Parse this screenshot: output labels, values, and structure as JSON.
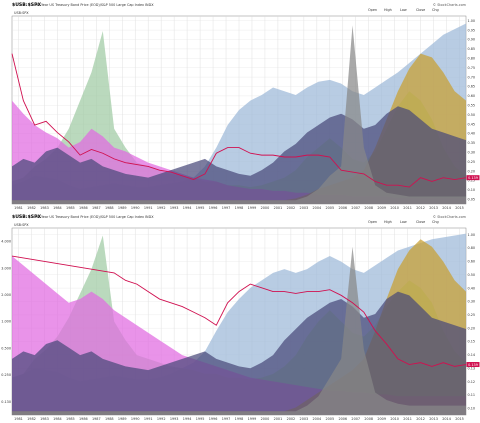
{
  "chart_data": [
    {
      "type": "area",
      "title": "$USB:$SPX",
      "subtitle": "30-Year US Treasury Bond Price (EOD)/S&P 500 Large Cap Index INDX",
      "ohlc_labels": [
        "Open",
        "High",
        "Low",
        "Close",
        "Chg"
      ],
      "brand": "© StockCharts.com",
      "x_ticks": [
        "1981",
        "1982",
        "1983",
        "1984",
        "1985",
        "1986",
        "1987",
        "1988",
        "1989",
        "1990",
        "1991",
        "1992",
        "1993",
        "1994",
        "1995",
        "1996",
        "1997",
        "1998",
        "1999",
        "2000",
        "2001",
        "2002",
        "2003",
        "2004",
        "2005",
        "2006",
        "2007",
        "2008",
        "2009",
        "2010",
        "2011",
        "2012",
        "2013",
        "2014",
        "2015"
      ],
      "y_ticks_right": [
        "1.00",
        "0.95",
        "0.90",
        "0.85",
        "0.80",
        "0.75",
        "0.70",
        "0.65",
        "0.60",
        "0.55",
        "0.50",
        "0.45",
        "0.40",
        "0.35",
        "0.30",
        "0.25",
        "0.20",
        "0.15",
        "0.10",
        "0.05"
      ],
      "last_value_label": "0.139",
      "series": [
        {
          "name": "USB:SPX",
          "color": "#d01050",
          "values": [
            0.8,
            0.55,
            0.42,
            0.44,
            0.38,
            0.33,
            0.26,
            0.29,
            0.27,
            0.24,
            0.22,
            0.21,
            0.2,
            0.18,
            0.17,
            0.15,
            0.13,
            0.16,
            0.27,
            0.3,
            0.3,
            0.27,
            0.26,
            0.26,
            0.25,
            0.25,
            0.26,
            0.26,
            0.25,
            0.18,
            0.17,
            0.16,
            0.12,
            0.1,
            0.1,
            0.09,
            0.14,
            0.12,
            0.14,
            0.13,
            0.14
          ]
        },
        {
          "color": "#9db8d8",
          "values": [
            0.1,
            0.12,
            0.15,
            0.14,
            0.13,
            0.1,
            0.08,
            0.09,
            0.1,
            0.11,
            0.1,
            0.09,
            0.09,
            0.1,
            0.11,
            0.12,
            0.14,
            0.2,
            0.3,
            0.42,
            0.5,
            0.55,
            0.58,
            0.62,
            0.6,
            0.58,
            0.62,
            0.65,
            0.66,
            0.64,
            0.6,
            0.58,
            0.62,
            0.66,
            0.7,
            0.75,
            0.8,
            0.85,
            0.9,
            0.93,
            0.96
          ]
        },
        {
          "color": "#9fcaa3",
          "values": [
            0.12,
            0.14,
            0.2,
            0.24,
            0.3,
            0.4,
            0.55,
            0.7,
            0.92,
            0.4,
            0.3,
            0.22,
            0.2,
            0.18,
            0.16,
            0.15,
            0.14,
            0.12,
            0.12,
            0.1,
            0.1,
            0.09,
            0.1,
            0.12,
            0.14,
            0.18,
            0.25,
            0.3,
            0.35,
            0.3,
            0.24,
            0.22,
            0.28,
            0.4,
            0.52,
            0.6,
            0.55,
            0.45,
            0.3,
            0.2,
            0.15
          ]
        },
        {
          "color": "#e06ae0",
          "values": [
            0.55,
            0.48,
            0.42,
            0.38,
            0.35,
            0.3,
            0.33,
            0.4,
            0.36,
            0.3,
            0.28,
            0.25,
            0.22,
            0.2,
            0.18,
            0.16,
            0.14,
            0.13,
            0.12,
            0.1,
            0.09,
            0.08,
            0.08,
            0.07,
            0.07,
            0.06,
            0.06,
            0.05,
            0.05,
            0.05,
            0.04,
            0.04,
            0.04,
            0.04,
            0.03,
            0.03,
            0.03,
            0.03,
            0.03,
            0.03,
            0.03
          ]
        },
        {
          "color": "#c9a030",
          "values": [
            0.02,
            0.02,
            0.02,
            0.02,
            0.02,
            0.02,
            0.02,
            0.02,
            0.02,
            0.02,
            0.02,
            0.02,
            0.02,
            0.02,
            0.02,
            0.02,
            0.02,
            0.02,
            0.02,
            0.02,
            0.02,
            0.02,
            0.02,
            0.02,
            0.02,
            0.03,
            0.05,
            0.08,
            0.1,
            0.12,
            0.14,
            0.18,
            0.3,
            0.45,
            0.6,
            0.72,
            0.8,
            0.78,
            0.7,
            0.6,
            0.55
          ]
        },
        {
          "color": "#4a4a7a",
          "values": [
            0.2,
            0.24,
            0.22,
            0.28,
            0.3,
            0.26,
            0.22,
            0.24,
            0.2,
            0.18,
            0.16,
            0.15,
            0.14,
            0.16,
            0.18,
            0.2,
            0.22,
            0.24,
            0.2,
            0.18,
            0.16,
            0.15,
            0.18,
            0.22,
            0.28,
            0.32,
            0.38,
            0.42,
            0.46,
            0.48,
            0.45,
            0.4,
            0.42,
            0.48,
            0.52,
            0.5,
            0.45,
            0.4,
            0.38,
            0.36,
            0.34
          ]
        },
        {
          "color": "#888888",
          "values": [
            0.02,
            0.02,
            0.02,
            0.02,
            0.02,
            0.02,
            0.02,
            0.02,
            0.02,
            0.02,
            0.02,
            0.02,
            0.02,
            0.02,
            0.02,
            0.02,
            0.02,
            0.02,
            0.02,
            0.02,
            0.02,
            0.02,
            0.02,
            0.02,
            0.02,
            0.02,
            0.04,
            0.08,
            0.15,
            0.2,
            0.95,
            0.3,
            0.1,
            0.06,
            0.05,
            0.04,
            0.04,
            0.04,
            0.04,
            0.04,
            0.04
          ]
        }
      ]
    },
    {
      "type": "area",
      "title": "$USB:$SPX",
      "subtitle": "30-Year US Treasury Bond Price (EOD)/S&P 500 Large Cap Index INDX",
      "ohlc_labels": [
        "Open",
        "High",
        "Low",
        "Close",
        "Chg"
      ],
      "brand": "© StockCharts.com",
      "scale": "log",
      "x_ticks": [
        "1981",
        "1982",
        "1983",
        "1984",
        "1985",
        "1986",
        "1987",
        "1988",
        "1989",
        "1990",
        "1991",
        "1992",
        "1993",
        "1994",
        "1995",
        "1996",
        "1997",
        "1998",
        "1999",
        "2000",
        "2001",
        "2002",
        "2003",
        "2004",
        "2005",
        "2006",
        "2007",
        "2008",
        "2009",
        "2010",
        "2011",
        "2012",
        "2013",
        "2014",
        "2015"
      ],
      "y_ticks_left": [
        "4.000",
        "3.000",
        "2.000",
        "1.000",
        "0.500",
        "0.250",
        "0.130"
      ],
      "y_ticks_right": [
        "1.00",
        "0.80",
        "0.60",
        "0.50",
        "0.40",
        "0.30",
        "0.25",
        "0.20",
        "0.15",
        "0.14",
        "0.13",
        "0.12",
        "0.11",
        "0.10"
      ],
      "last_value_label": "0.139",
      "series": [
        {
          "name": "USB:SPX",
          "color": "#d01050",
          "values": [
            0.85,
            0.84,
            0.83,
            0.82,
            0.81,
            0.8,
            0.79,
            0.78,
            0.77,
            0.76,
            0.72,
            0.7,
            0.66,
            0.62,
            0.6,
            0.58,
            0.55,
            0.52,
            0.48,
            0.6,
            0.66,
            0.7,
            0.68,
            0.66,
            0.66,
            0.65,
            0.66,
            0.66,
            0.67,
            0.64,
            0.6,
            0.55,
            0.45,
            0.38,
            0.3,
            0.27,
            0.28,
            0.26,
            0.28,
            0.26,
            0.27
          ]
        },
        {
          "color": "#9db8d8",
          "values": [
            0.2,
            0.22,
            0.25,
            0.24,
            0.23,
            0.2,
            0.18,
            0.19,
            0.2,
            0.21,
            0.2,
            0.19,
            0.19,
            0.2,
            0.22,
            0.25,
            0.28,
            0.34,
            0.45,
            0.55,
            0.62,
            0.68,
            0.72,
            0.76,
            0.78,
            0.76,
            0.78,
            0.82,
            0.85,
            0.82,
            0.78,
            0.76,
            0.8,
            0.84,
            0.88,
            0.9,
            0.92,
            0.94,
            0.95,
            0.96,
            0.97
          ]
        },
        {
          "color": "#9fcaa3",
          "values": [
            0.2,
            0.22,
            0.3,
            0.35,
            0.42,
            0.52,
            0.65,
            0.78,
            0.96,
            0.5,
            0.4,
            0.32,
            0.3,
            0.28,
            0.26,
            0.25,
            0.24,
            0.22,
            0.22,
            0.2,
            0.2,
            0.19,
            0.2,
            0.22,
            0.26,
            0.32,
            0.42,
            0.5,
            0.56,
            0.5,
            0.44,
            0.42,
            0.48,
            0.58,
            0.66,
            0.72,
            0.68,
            0.6,
            0.45,
            0.34,
            0.28
          ]
        },
        {
          "color": "#e06ae0",
          "values": [
            0.85,
            0.8,
            0.75,
            0.7,
            0.65,
            0.6,
            0.62,
            0.66,
            0.62,
            0.56,
            0.52,
            0.48,
            0.44,
            0.4,
            0.36,
            0.32,
            0.3,
            0.28,
            0.26,
            0.24,
            0.22,
            0.2,
            0.19,
            0.18,
            0.17,
            0.16,
            0.15,
            0.14,
            0.13,
            0.13,
            0.12,
            0.12,
            0.11,
            0.11,
            0.1,
            0.1,
            0.1,
            0.1,
            0.1,
            0.1,
            0.1
          ]
        },
        {
          "color": "#c9a030",
          "values": [
            0.02,
            0.02,
            0.02,
            0.02,
            0.02,
            0.02,
            0.02,
            0.02,
            0.02,
            0.02,
            0.02,
            0.02,
            0.02,
            0.02,
            0.02,
            0.02,
            0.02,
            0.02,
            0.02,
            0.02,
            0.02,
            0.02,
            0.02,
            0.02,
            0.02,
            0.04,
            0.08,
            0.12,
            0.16,
            0.2,
            0.24,
            0.3,
            0.45,
            0.62,
            0.78,
            0.88,
            0.94,
            0.9,
            0.82,
            0.72,
            0.66
          ]
        },
        {
          "color": "#4a4a7a",
          "values": [
            0.3,
            0.34,
            0.32,
            0.38,
            0.4,
            0.36,
            0.32,
            0.34,
            0.3,
            0.28,
            0.26,
            0.25,
            0.24,
            0.26,
            0.28,
            0.3,
            0.32,
            0.34,
            0.3,
            0.28,
            0.26,
            0.25,
            0.28,
            0.32,
            0.4,
            0.46,
            0.52,
            0.56,
            0.6,
            0.62,
            0.58,
            0.52,
            0.54,
            0.62,
            0.66,
            0.64,
            0.58,
            0.52,
            0.5,
            0.48,
            0.46
          ]
        },
        {
          "color": "#888888",
          "values": [
            0.02,
            0.02,
            0.02,
            0.02,
            0.02,
            0.02,
            0.02,
            0.02,
            0.02,
            0.02,
            0.02,
            0.02,
            0.02,
            0.02,
            0.02,
            0.02,
            0.02,
            0.02,
            0.02,
            0.02,
            0.02,
            0.02,
            0.02,
            0.02,
            0.02,
            0.02,
            0.05,
            0.1,
            0.2,
            0.3,
            0.9,
            0.35,
            0.12,
            0.08,
            0.06,
            0.05,
            0.05,
            0.05,
            0.05,
            0.05,
            0.05
          ]
        }
      ]
    }
  ]
}
